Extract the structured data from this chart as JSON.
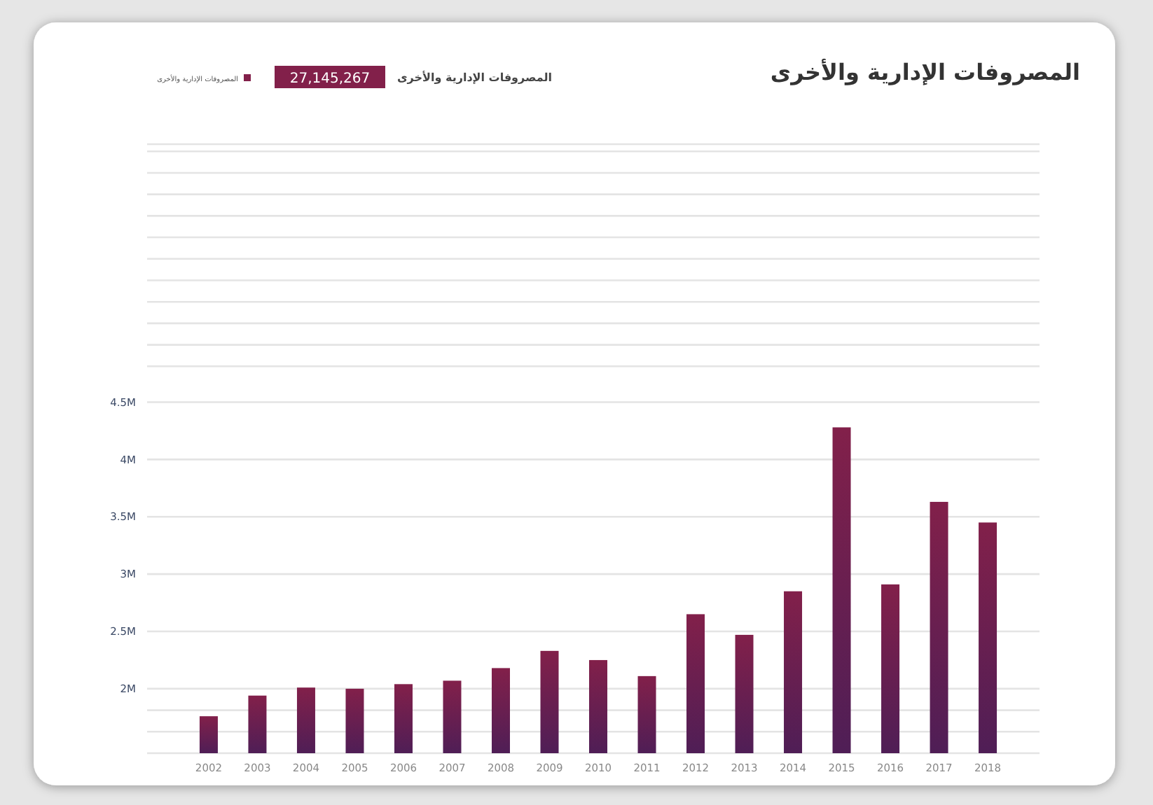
{
  "chart_data": {
    "type": "bar",
    "title": "المصروفات الإدارية والأخرى",
    "annotations": [
      "المصروفات الإدارية والأخرى",
      "27,145,267"
    ],
    "categories": [
      "2002",
      "2003",
      "2004",
      "2005",
      "2006",
      "2007",
      "2008",
      "2009",
      "2010",
      "2011",
      "2012",
      "2013",
      "2014",
      "2015",
      "2016",
      "2017",
      "2018"
    ],
    "series": [
      {
        "name": "المصروفات الإدارية والأخرى",
        "color": "#82204a",
        "values": [
          1.76,
          1.94,
          2.01,
          2.0,
          2.04,
          2.07,
          2.18,
          2.33,
          2.25,
          2.11,
          2.65,
          2.47,
          2.85,
          4.28,
          2.91,
          3.63,
          3.45
        ]
      }
    ],
    "ylim": [
      1.4375,
      6.75
    ],
    "yticks": [
      {
        "value": 1.625,
        "label": null
      },
      {
        "value": 1.8125,
        "label": null
      },
      {
        "value": 2,
        "label": "2M"
      },
      {
        "value": 2.5,
        "label": "2.5M"
      },
      {
        "value": 3,
        "label": "3M"
      },
      {
        "value": 3.5,
        "label": "3.5M"
      },
      {
        "value": 4,
        "label": "4M"
      },
      {
        "value": 4.5,
        "label": "4.5M"
      },
      {
        "value": 4.8125,
        "label": null
      },
      {
        "value": 5,
        "label": null
      },
      {
        "value": 5.1875,
        "label": null
      },
      {
        "value": 5.375,
        "label": null
      },
      {
        "value": 5.5625,
        "label": null
      },
      {
        "value": 5.75,
        "label": null
      },
      {
        "value": 5.9375,
        "label": null
      },
      {
        "value": 6.125,
        "label": null
      },
      {
        "value": 6.3125,
        "label": null
      },
      {
        "value": 6.5,
        "label": null
      },
      {
        "value": 6.6875,
        "label": null
      }
    ],
    "grid": "y",
    "legend": "top left"
  }
}
